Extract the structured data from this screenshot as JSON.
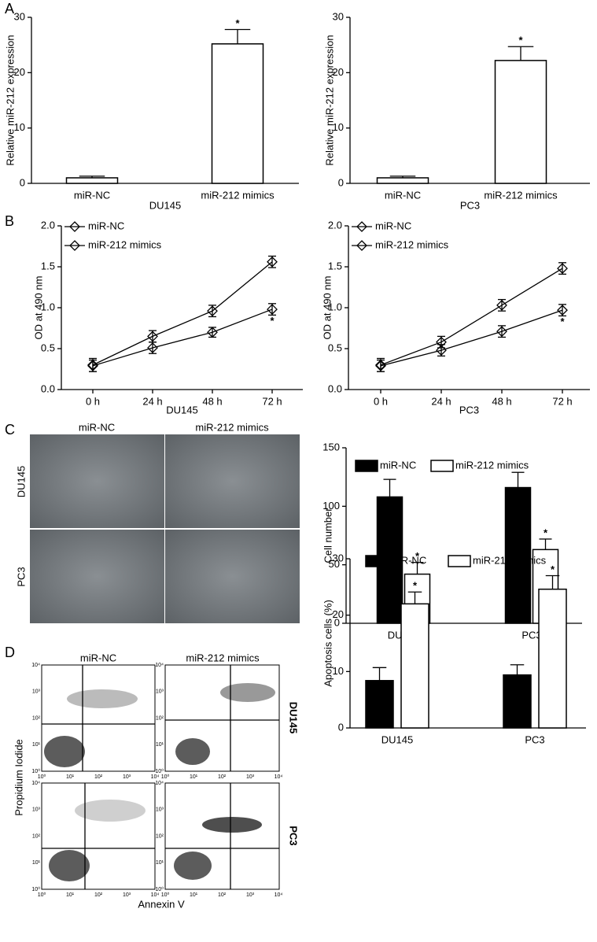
{
  "panel_labels": [
    "A",
    "B",
    "C",
    "D"
  ],
  "micrographs": {
    "columns": [
      "miR-NC",
      "miR-212 mimics"
    ],
    "rows": [
      "DU145",
      "PC3"
    ]
  },
  "flow": {
    "columns": [
      "miR-NC",
      "miR-212 mimics"
    ],
    "rows": [
      "DU145",
      "PC3"
    ],
    "ylabel": "Propidium Iodide",
    "xlabel": "Annexin V",
    "ticks": [
      "10⁰",
      "10¹",
      "10²",
      "10³",
      "10⁴"
    ]
  },
  "chart_data": [
    {
      "type": "bar",
      "ylabel": "Relative miR-212 expression",
      "xlabel": "DU145",
      "categories": [
        "miR-NC",
        "miR-212 mimics"
      ],
      "series": [
        {
          "color": "#ffffff",
          "values": [
            1.0,
            25.2
          ],
          "errors": [
            0.3,
            2.6
          ],
          "significance": [
            null,
            "*"
          ]
        }
      ],
      "ylim": [
        0,
        30
      ],
      "yticks": [
        0,
        10,
        20,
        30
      ]
    },
    {
      "type": "bar",
      "ylabel": "Relative miR-212 expression",
      "xlabel": "PC3",
      "categories": [
        "miR-NC",
        "miR-212 mimics"
      ],
      "series": [
        {
          "color": "#ffffff",
          "values": [
            1.0,
            22.2
          ],
          "errors": [
            0.3,
            2.5
          ],
          "significance": [
            null,
            "*"
          ]
        }
      ],
      "ylim": [
        0,
        30
      ],
      "yticks": [
        0,
        10,
        20,
        30
      ]
    },
    {
      "type": "line",
      "ylabel": "OD at 490 nm",
      "xlabel": "DU145",
      "categories": [
        "0 h",
        "24 h",
        "48 h",
        "72 h"
      ],
      "series": [
        {
          "name": "miR-NC",
          "color": "#000000",
          "marker_fill": "#000000",
          "values": [
            0.3,
            0.65,
            0.96,
            1.56
          ],
          "errors": [
            0.08,
            0.07,
            0.07,
            0.07
          ]
        },
        {
          "name": "miR-212 mimics",
          "color": "#000000",
          "marker_fill": "#ffffff",
          "values": [
            0.29,
            0.51,
            0.7,
            0.98
          ],
          "errors": [
            0.07,
            0.07,
            0.06,
            0.07
          ],
          "significance": [
            null,
            null,
            null,
            "*"
          ]
        }
      ],
      "ylim": [
        0,
        2
      ],
      "yticks": [
        {
          "value": 0,
          "label": "0.0"
        },
        {
          "value": 0.5,
          "label": "0.5"
        },
        {
          "value": 1,
          "label": "1.0"
        },
        {
          "value": 1.5,
          "label": "1.5"
        },
        {
          "value": 2,
          "label": "2.0"
        }
      ],
      "legend": "upper left"
    },
    {
      "type": "line",
      "ylabel": "OD at 490 nm",
      "xlabel": "PC3",
      "categories": [
        "0 h",
        "24 h",
        "48 h",
        "72 h"
      ],
      "series": [
        {
          "name": "miR-NC",
          "color": "#000000",
          "marker_fill": "#000000",
          "values": [
            0.3,
            0.58,
            1.03,
            1.48
          ],
          "errors": [
            0.08,
            0.07,
            0.07,
            0.07
          ]
        },
        {
          "name": "miR-212 mimics",
          "color": "#000000",
          "marker_fill": "#ffffff",
          "values": [
            0.29,
            0.48,
            0.71,
            0.97
          ],
          "errors": [
            0.07,
            0.07,
            0.07,
            0.07
          ],
          "significance": [
            null,
            null,
            null,
            "*"
          ]
        }
      ],
      "ylim": [
        0,
        2
      ],
      "yticks": [
        {
          "value": 0,
          "label": "0.0"
        },
        {
          "value": 0.5,
          "label": "0.5"
        },
        {
          "value": 1,
          "label": "1.0"
        },
        {
          "value": 1.5,
          "label": "1.5"
        },
        {
          "value": 2,
          "label": "2.0"
        }
      ],
      "legend": "upper left"
    },
    {
      "type": "bar",
      "ylabel": "Cell number",
      "categories": [
        "DU145",
        "PC3"
      ],
      "series": [
        {
          "name": "miR-NC",
          "color": "#000000",
          "values": [
            108,
            116
          ],
          "errors": [
            15,
            13
          ]
        },
        {
          "name": "miR-212 mimics",
          "color": "#ffffff",
          "values": [
            42,
            63
          ],
          "errors": [
            10,
            9
          ],
          "significance": [
            "*",
            "*"
          ]
        }
      ],
      "ylim": [
        0,
        150
      ],
      "yticks": [
        0,
        50,
        100,
        150
      ],
      "legend": "upper center"
    },
    {
      "type": "bar",
      "ylabel": "Apoptosis cells (%)",
      "categories": [
        "DU145",
        "PC3"
      ],
      "series": [
        {
          "name": "miR-NC",
          "color": "#000000",
          "values": [
            8.4,
            9.4
          ],
          "errors": [
            2.3,
            1.8
          ]
        },
        {
          "name": "miR-212 mimics",
          "color": "#ffffff",
          "values": [
            22.0,
            24.6
          ],
          "errors": [
            2.1,
            2.4
          ],
          "significance": [
            "*",
            "*"
          ]
        }
      ],
      "ylim": [
        0,
        30
      ],
      "yticks": [
        0,
        10,
        20,
        30
      ],
      "legend": "upper center"
    }
  ]
}
